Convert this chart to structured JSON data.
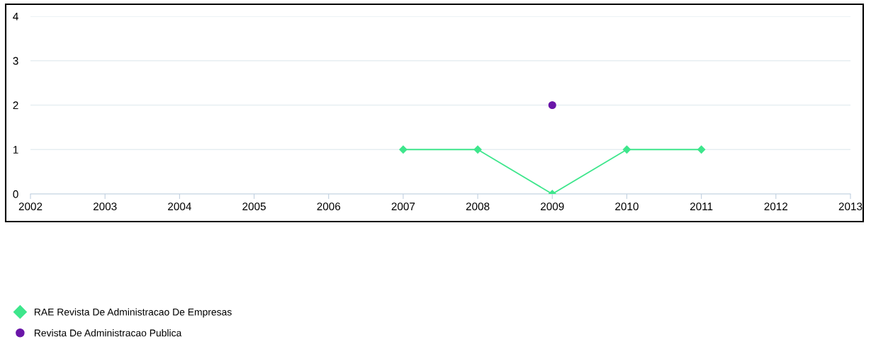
{
  "chart_data": {
    "type": "line",
    "x": [
      2007,
      2008,
      2009,
      2010,
      2011
    ],
    "series": [
      {
        "name": "RAE Revista De Administracao De Empresas",
        "color": "#3ee68c",
        "values": [
          1,
          1,
          0,
          1,
          1
        ],
        "marker": "diamond"
      },
      {
        "name": "Revista De Administracao Publica",
        "color": "#6a16a8",
        "type": "scatter",
        "x": [
          2009
        ],
        "values": [
          2
        ],
        "marker": "circle"
      }
    ],
    "xlim": [
      2002,
      2013
    ],
    "xticks": [
      2002,
      2003,
      2004,
      2005,
      2006,
      2007,
      2008,
      2009,
      2010,
      2011,
      2012,
      2013
    ],
    "ylim": [
      0,
      4
    ],
    "yticks": [
      0,
      1,
      2,
      3,
      4
    ],
    "grid": "y",
    "legend": "bottom left"
  }
}
